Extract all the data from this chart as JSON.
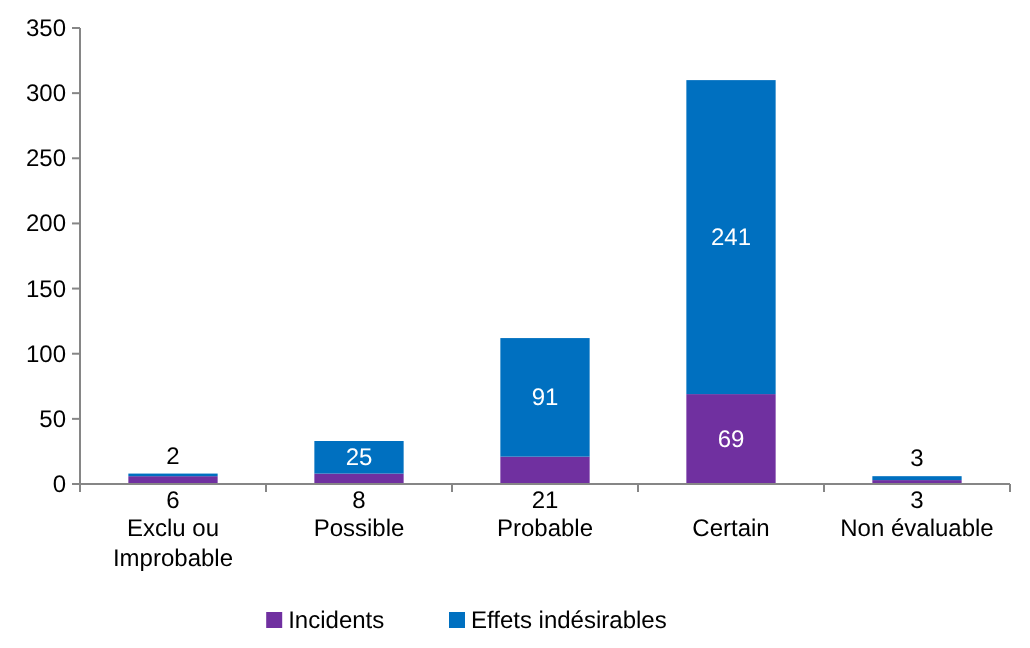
{
  "chart_data": {
    "type": "bar",
    "stacked": true,
    "categories": [
      "Exclu ou Improbable",
      "Possible",
      "Probable",
      "Certain",
      "Non évaluable"
    ],
    "series": [
      {
        "name": "Incidents",
        "color": "#7030a0",
        "values": [
          6,
          8,
          21,
          69,
          3
        ]
      },
      {
        "name": "Effets indésirables",
        "color": "#0070c0",
        "values": [
          2,
          25,
          91,
          241,
          3
        ]
      }
    ],
    "ylim": [
      0,
      350
    ],
    "yticks": [
      0,
      50,
      100,
      150,
      200,
      250,
      300,
      350
    ],
    "data_labels": true,
    "legend": "bottom",
    "grid": false
  }
}
